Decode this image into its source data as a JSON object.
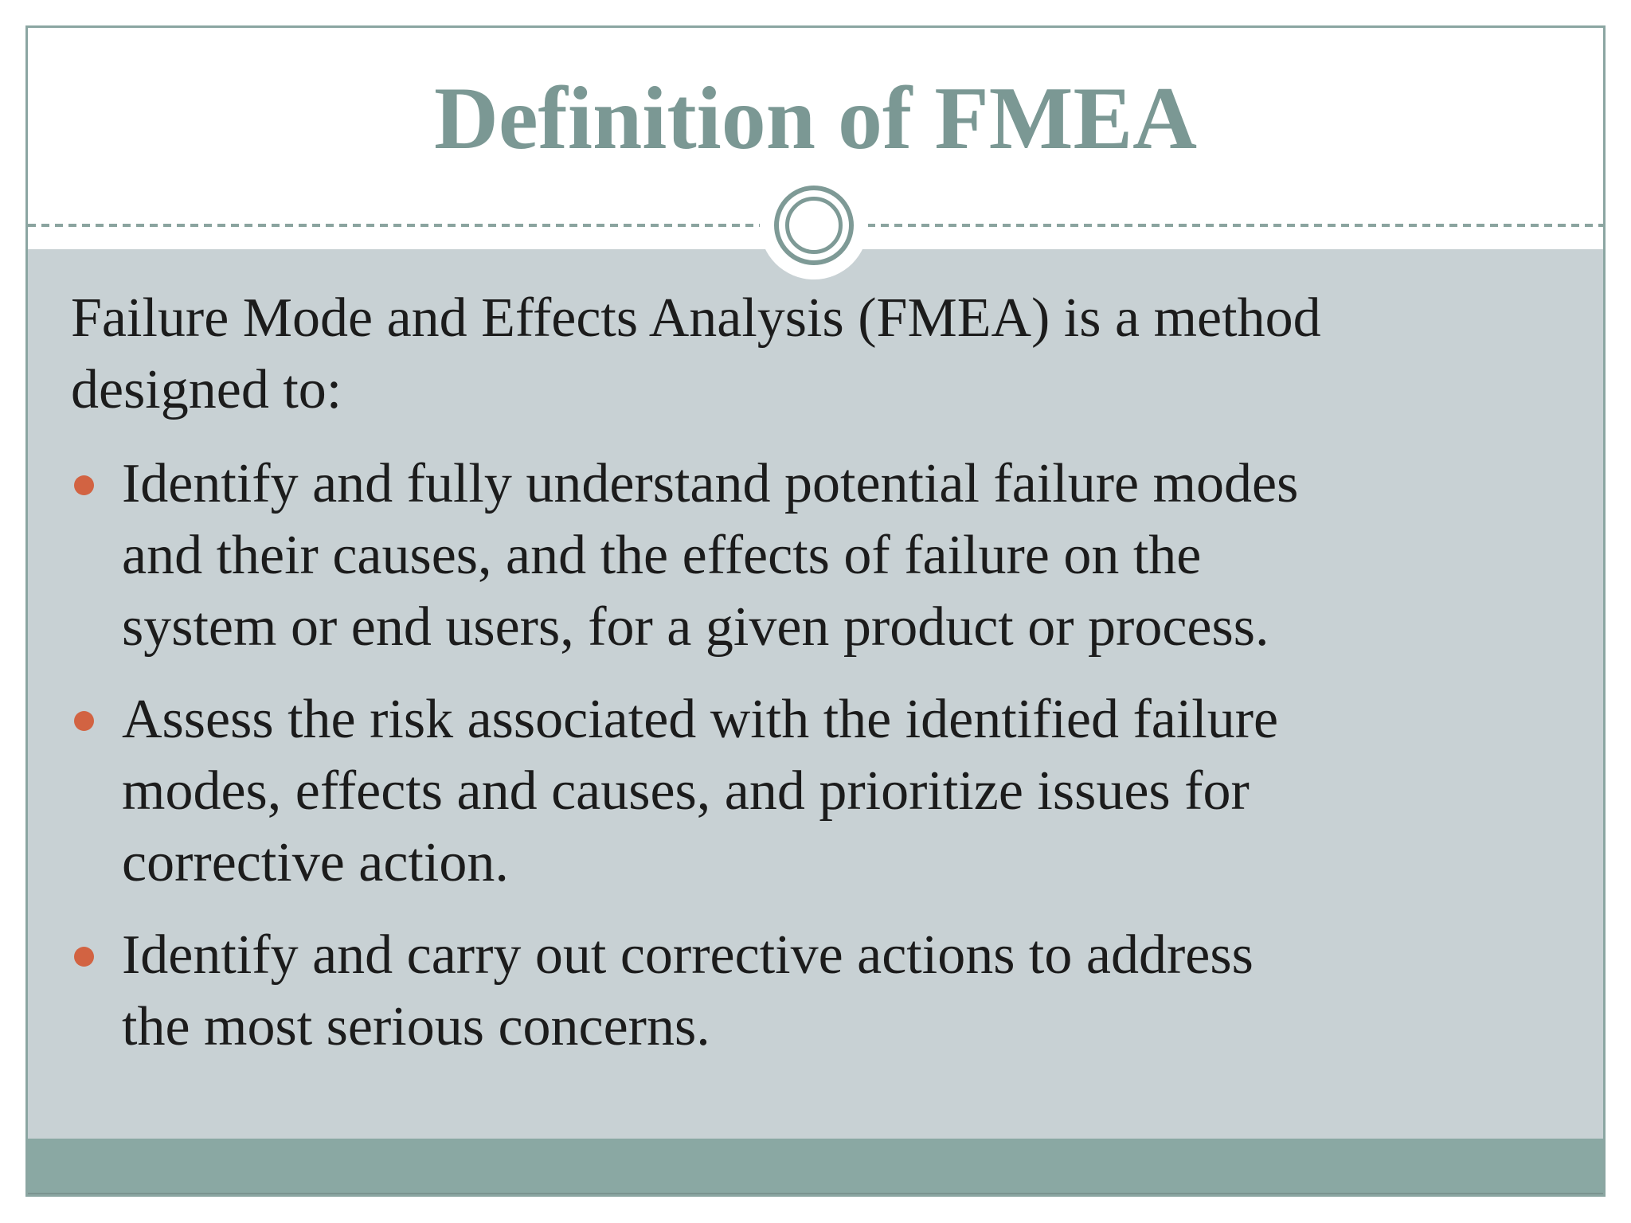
{
  "slide": {
    "title": "Definition of FMEA",
    "intro": "Failure Mode and Effects Analysis (FMEA) is a method\ndesigned to:",
    "bullets": [
      "Identify and fully understand potential failure modes\nand their causes, and the effects of failure on the\nsystem or end users, for a given product or process.",
      "Assess the risk associated with the identified failure\nmodes, effects and causes, and prioritize issues for\ncorrective action.",
      "Identify and carry out corrective actions to address\nthe most serious concerns."
    ],
    "colors": {
      "accent_teal": "#7e9a96",
      "frame_border": "#8ba6a2",
      "title_text": "#7b9894",
      "body_background": "#c8d1d4",
      "footer_bar": "#8aa8a3",
      "bullet_dot": "#d26342",
      "body_text": "#1c1c1c"
    }
  }
}
